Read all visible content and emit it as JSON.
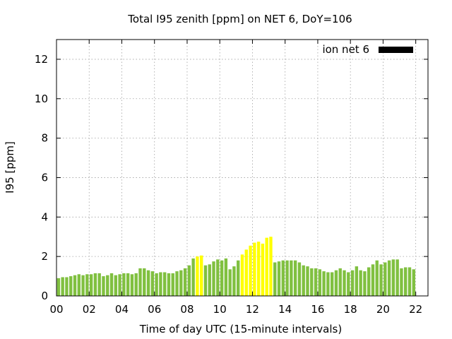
{
  "chart_data": {
    "type": "bar",
    "title": "Total I95 zenith [ppm] on NET 6, DoY=106",
    "xlabel": "Time of day UTC (15-minute intervals)",
    "ylabel": "I95 [ppm]",
    "xlim": [
      0,
      22.75
    ],
    "ylim": [
      0,
      13
    ],
    "x_tick_labels": [
      "00",
      "02",
      "04",
      "06",
      "08",
      "10",
      "12",
      "14",
      "16",
      "18",
      "20",
      "22"
    ],
    "x_tick_values": [
      0,
      2,
      4,
      6,
      8,
      10,
      12,
      14,
      16,
      18,
      20,
      22
    ],
    "y_tick_values": [
      0,
      2,
      4,
      6,
      8,
      10,
      12
    ],
    "grid": true,
    "legend": {
      "position": "top-right",
      "entries": [
        {
          "label": "ion net 6",
          "color": "#000000"
        }
      ]
    },
    "interval_hours": 0.25,
    "bar_colors": {
      "normal": "#80c040",
      "elevated": "#ffff00"
    },
    "values": [
      0.9,
      0.95,
      0.95,
      1.0,
      1.05,
      1.1,
      1.05,
      1.1,
      1.1,
      1.15,
      1.15,
      1.0,
      1.05,
      1.15,
      1.05,
      1.1,
      1.15,
      1.15,
      1.1,
      1.15,
      1.4,
      1.4,
      1.3,
      1.25,
      1.15,
      1.2,
      1.2,
      1.15,
      1.15,
      1.25,
      1.3,
      1.4,
      1.55,
      1.9,
      2.0,
      2.05,
      1.55,
      1.6,
      1.75,
      1.85,
      1.8,
      1.9,
      1.35,
      1.5,
      1.8,
      2.1,
      2.35,
      2.55,
      2.7,
      2.75,
      2.65,
      2.95,
      3.0,
      1.7,
      1.75,
      1.8,
      1.8,
      1.8,
      1.8,
      1.7,
      1.55,
      1.5,
      1.4,
      1.4,
      1.35,
      1.25,
      1.2,
      1.2,
      1.3,
      1.4,
      1.3,
      1.2,
      1.3,
      1.5,
      1.3,
      1.25,
      1.45,
      1.6,
      1.8,
      1.6,
      1.7,
      1.8,
      1.85,
      1.85,
      1.4,
      1.45,
      1.45,
      1.35
    ]
  }
}
